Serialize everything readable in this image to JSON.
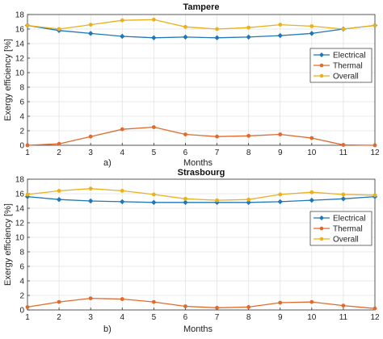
{
  "chart_data": [
    {
      "type": "line",
      "panel": "a)",
      "title": "Tampere",
      "xlabel": "Months",
      "ylabel": "Exergy efficiency [%]",
      "xlim": [
        1,
        12
      ],
      "ylim": [
        0,
        18
      ],
      "xticks": [
        1,
        2,
        3,
        4,
        5,
        6,
        7,
        8,
        9,
        10,
        11,
        12
      ],
      "yticks": [
        0,
        2,
        4,
        6,
        8,
        10,
        12,
        14,
        16,
        18
      ],
      "grid": true,
      "legend_position": "right",
      "x": [
        1,
        2,
        3,
        4,
        5,
        6,
        7,
        8,
        9,
        10,
        11,
        12
      ],
      "series": [
        {
          "name": "Electrical",
          "color": "#1f77b4",
          "marker": "diamond",
          "values": [
            16.5,
            15.8,
            15.4,
            15.0,
            14.8,
            14.9,
            14.8,
            14.9,
            15.1,
            15.4,
            16.0,
            16.5
          ]
        },
        {
          "name": "Thermal",
          "color": "#e06a2c",
          "marker": "circle",
          "values": [
            0.0,
            0.2,
            1.2,
            2.2,
            2.5,
            1.5,
            1.2,
            1.3,
            1.5,
            1.0,
            0.05,
            0.0
          ]
        },
        {
          "name": "Overall",
          "color": "#eab11c",
          "marker": "circle",
          "values": [
            16.5,
            16.0,
            16.6,
            17.2,
            17.3,
            16.3,
            16.0,
            16.2,
            16.6,
            16.4,
            16.0,
            16.5
          ]
        }
      ]
    },
    {
      "type": "line",
      "panel": "b)",
      "title": "Strasbourg",
      "xlabel": "Months",
      "ylabel": "Exergy efficiency [%]",
      "xlim": [
        1,
        12
      ],
      "ylim": [
        0,
        18
      ],
      "xticks": [
        1,
        2,
        3,
        4,
        5,
        6,
        7,
        8,
        9,
        10,
        11,
        12
      ],
      "yticks": [
        0,
        2,
        4,
        6,
        8,
        10,
        12,
        14,
        16,
        18
      ],
      "grid": true,
      "legend_position": "right",
      "x": [
        1,
        2,
        3,
        4,
        5,
        6,
        7,
        8,
        9,
        10,
        11,
        12
      ],
      "series": [
        {
          "name": "Electrical",
          "color": "#1f77b4",
          "marker": "diamond",
          "values": [
            15.6,
            15.2,
            15.0,
            14.9,
            14.8,
            14.8,
            14.8,
            14.8,
            14.9,
            15.1,
            15.3,
            15.6
          ]
        },
        {
          "name": "Thermal",
          "color": "#e06a2c",
          "marker": "circle",
          "values": [
            0.4,
            1.1,
            1.6,
            1.5,
            1.1,
            0.5,
            0.3,
            0.4,
            1.0,
            1.1,
            0.6,
            0.2
          ]
        },
        {
          "name": "Overall",
          "color": "#eab11c",
          "marker": "circle",
          "values": [
            15.9,
            16.4,
            16.7,
            16.4,
            15.9,
            15.3,
            15.1,
            15.2,
            15.9,
            16.2,
            15.9,
            15.8
          ]
        }
      ]
    }
  ]
}
